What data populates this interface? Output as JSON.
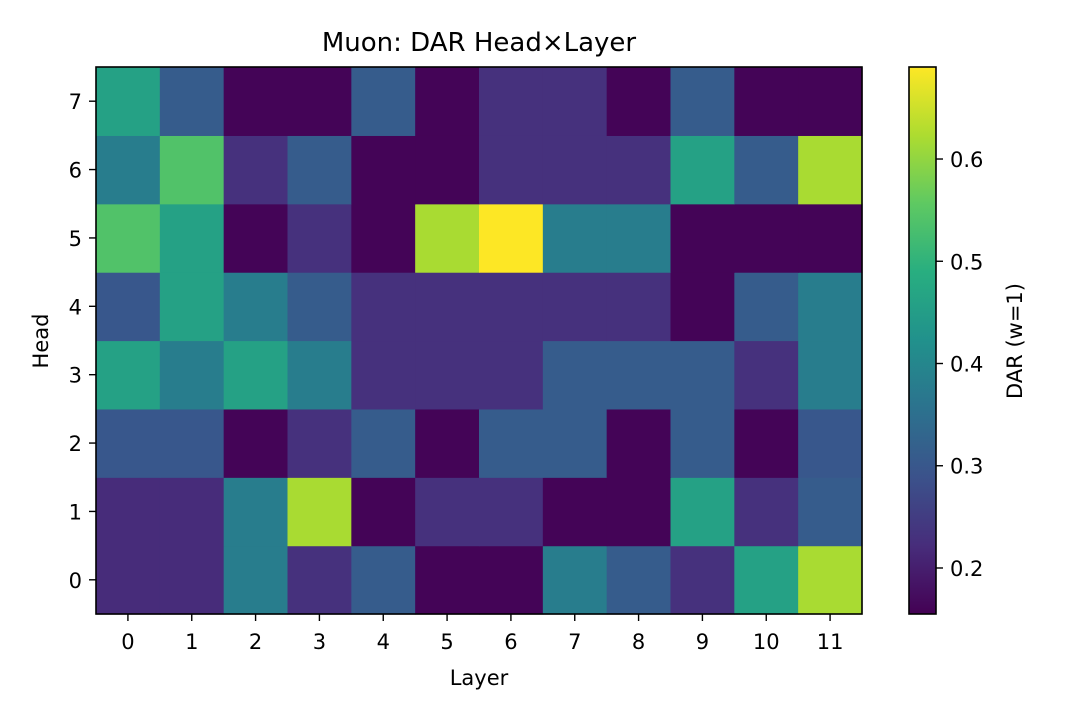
{
  "chart_data": {
    "type": "heatmap",
    "title": "Muon: DAR Head×Layer",
    "xlabel": "Layer",
    "ylabel": "Head",
    "colorbar_label": "DAR (w=1)",
    "x_ticks": [
      "0",
      "1",
      "2",
      "3",
      "4",
      "5",
      "6",
      "7",
      "8",
      "9",
      "10",
      "11"
    ],
    "y_ticks": [
      "0",
      "1",
      "2",
      "3",
      "4",
      "5",
      "6",
      "7"
    ],
    "colorbar_ticks": [
      0.2,
      0.3,
      0.4,
      0.5,
      0.6
    ],
    "colorbar_tick_labels": [
      "0.2",
      "0.3",
      "0.4",
      "0.5",
      "0.6"
    ],
    "vmin": 0.155,
    "vmax": 0.69,
    "colormap": "viridis",
    "rows_head": [
      0,
      1,
      2,
      3,
      4,
      5,
      6,
      7
    ],
    "values": [
      [
        0.22,
        0.22,
        0.38,
        0.23,
        0.31,
        0.16,
        0.16,
        0.38,
        0.31,
        0.23,
        0.46,
        0.62
      ],
      [
        0.22,
        0.22,
        0.38,
        0.62,
        0.16,
        0.23,
        0.23,
        0.16,
        0.16,
        0.46,
        0.23,
        0.31
      ],
      [
        0.3,
        0.3,
        0.16,
        0.23,
        0.31,
        0.16,
        0.31,
        0.31,
        0.16,
        0.31,
        0.16,
        0.3
      ],
      [
        0.46,
        0.38,
        0.46,
        0.38,
        0.23,
        0.23,
        0.23,
        0.31,
        0.31,
        0.31,
        0.23,
        0.38
      ],
      [
        0.3,
        0.46,
        0.38,
        0.31,
        0.23,
        0.23,
        0.23,
        0.23,
        0.23,
        0.16,
        0.31,
        0.38
      ],
      [
        0.54,
        0.46,
        0.16,
        0.23,
        0.16,
        0.62,
        0.69,
        0.38,
        0.38,
        0.16,
        0.16,
        0.16
      ],
      [
        0.38,
        0.54,
        0.23,
        0.31,
        0.16,
        0.16,
        0.23,
        0.23,
        0.23,
        0.46,
        0.31,
        0.62
      ],
      [
        0.46,
        0.31,
        0.16,
        0.16,
        0.31,
        0.16,
        0.23,
        0.23,
        0.16,
        0.31,
        0.16,
        0.16
      ]
    ]
  }
}
